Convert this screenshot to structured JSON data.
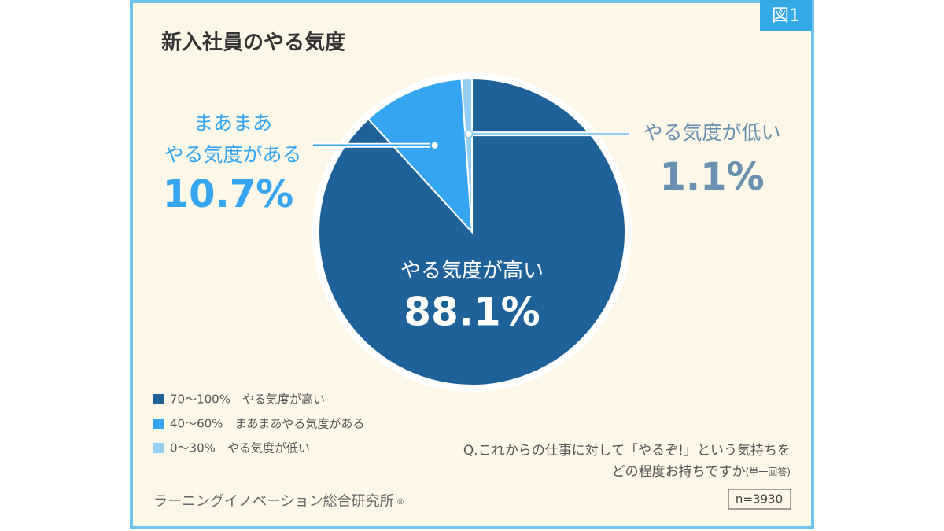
{
  "badge": "図1",
  "chart_data": {
    "type": "pie",
    "title": "新入社員のやる気度",
    "categories": [
      "70〜100%　やる気度が高い",
      "40〜60%　まあまあやる気度がある",
      "0〜30%　やる気度が低い"
    ],
    "slice_labels": [
      [
        "やる気度が高い"
      ],
      [
        "まあまあ",
        "やる気度がある"
      ],
      [
        "やる気度が低い"
      ]
    ],
    "values": [
      88.1,
      10.7,
      1.1
    ],
    "value_labels": [
      "88.1%",
      "10.7%",
      "1.1%"
    ],
    "colors": [
      "#1f6199",
      "#35a5f2",
      "#93cff2"
    ]
  },
  "question": [
    "Q.これからの仕事に対して「やるぞ!」という気持ちを",
    "どの程度お持ちですか",
    "(単一回答)"
  ],
  "sample": "n=3930",
  "source": "ラーニングイノベーション総合研究所",
  "registered": "®"
}
